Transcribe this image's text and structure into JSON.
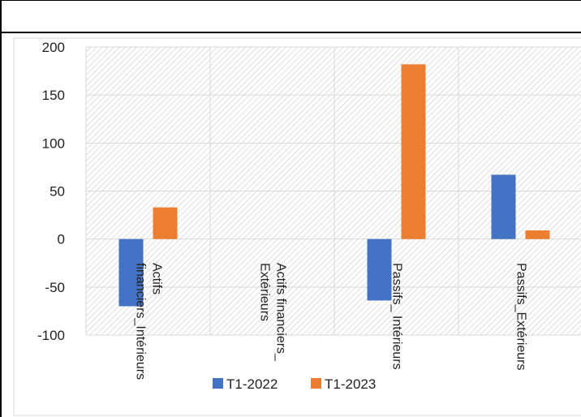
{
  "chart_data": {
    "type": "bar",
    "categories": [
      [
        "Actifs",
        "financiers_Intérieurs"
      ],
      [
        "Actifs financiers_",
        "Extérieurs"
      ],
      [
        "Passifs_ Intérieurs"
      ],
      [
        "Passifs_Extérieurs"
      ]
    ],
    "series": [
      {
        "name": "T1-2022",
        "values": [
          -70,
          0,
          -64,
          67
        ],
        "color": "#4472C4"
      },
      {
        "name": "T1-2023",
        "values": [
          33,
          0,
          182,
          9
        ],
        "color": "#ED7D31"
      }
    ],
    "yticks": [
      200,
      150,
      100,
      50,
      0,
      -50,
      -100
    ],
    "ylim": [
      -100,
      200
    ],
    "grid": true,
    "legend": "bottom-overlapping-labels",
    "title": "",
    "xlabel": "",
    "ylabel": ""
  },
  "colors": {
    "gridline": "#d9d9d9",
    "hatch": "#c8c8c8",
    "border": "#000000"
  }
}
